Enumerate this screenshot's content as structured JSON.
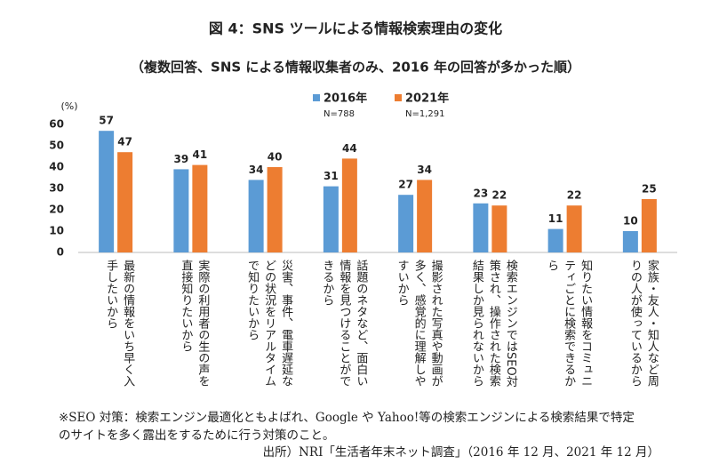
{
  "chart_data": {
    "type": "bar",
    "title": "図 4：SNS ツールによる情報検索理由の変化",
    "subtitle": "（複数回答、SNS による情報収集者のみ、2016 年の回答が多かった順）",
    "y_unit": "(%)",
    "categories": [
      "最新の情報をいち早く入手したいから",
      "実際の利用者の生の声を直接知りたいから",
      "災害、事件、電車遅延などの状況をリアルタイムで知りたいから",
      "話題のネタなど、面白い情報を見つけることができるから",
      "撮影された写真や動画が多く、感覚的に理解しやすいから",
      "検索エンジンではSEO対策され、操作された検索結果しか見られないから",
      "知りたい情報をコミュニティごとに検索できるから",
      "家族・友人・知人など周りの人が使っているから"
    ],
    "series": [
      {
        "name": "2016年",
        "sample": "N=788",
        "color": "#5b9bd5",
        "values": [
          57,
          39,
          34,
          31,
          27,
          23,
          11,
          10
        ]
      },
      {
        "name": "2021年",
        "sample": "N=1,291",
        "color": "#ed7d31",
        "values": [
          47,
          41,
          40,
          44,
          34,
          22,
          22,
          25
        ]
      }
    ],
    "ylim": [
      0,
      60
    ],
    "yticks": [
      0,
      10,
      20,
      30,
      40,
      50,
      60
    ],
    "grid": false,
    "footnote": [
      "※SEO 対策：検索エンジン最適化ともよばれ、Google や Yahoo!等の検索エンジンによる検索結果で特定",
      "のサイトを多く露出をするために行う対策のこと。"
    ],
    "source": "出所）NRI「生活者年末ネット調査」（2016 年 12 月、2021 年 12 月）"
  }
}
